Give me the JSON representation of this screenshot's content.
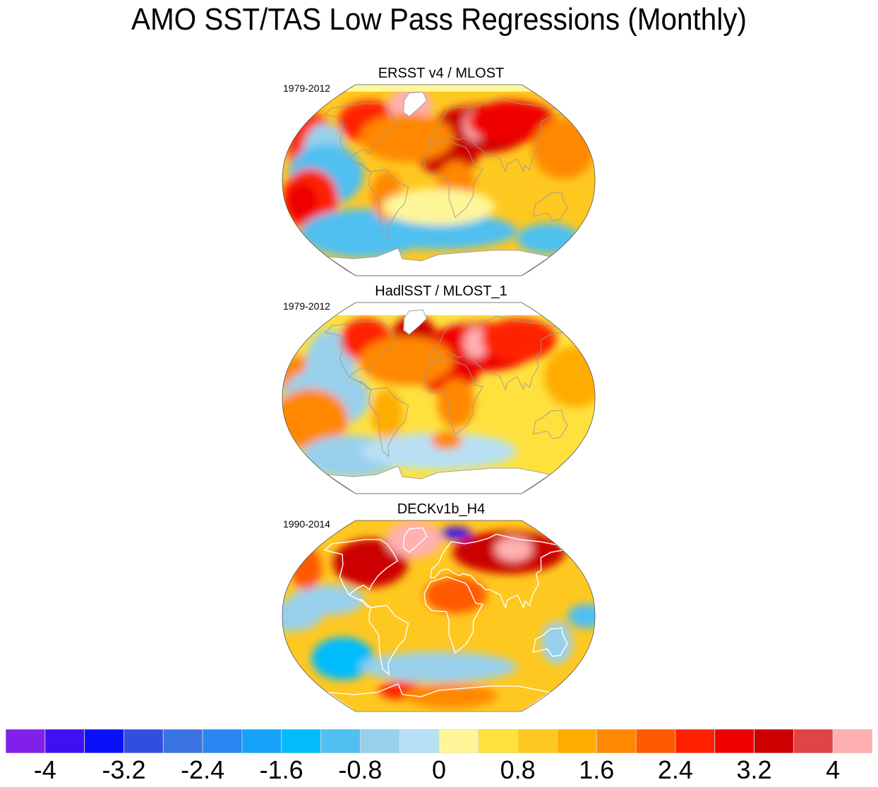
{
  "title": "AMO SST/TAS Low Pass Regressions (Monthly)",
  "panels": [
    {
      "title": "ERSST v4 / MLOST",
      "years": "1979-2012",
      "blobs": [
        {
          "lon": -150,
          "lat": 28,
          "rx": 0.08,
          "ry": 0.12,
          "level": 17
        },
        {
          "lon": -135,
          "lat": 25,
          "rx": 0.07,
          "ry": 0.1,
          "level": 9
        },
        {
          "lon": -130,
          "lat": 5,
          "rx": 0.12,
          "ry": 0.1,
          "level": 8
        },
        {
          "lon": -150,
          "lat": -18,
          "rx": 0.09,
          "ry": 0.1,
          "level": 17
        },
        {
          "lon": -160,
          "lat": -20,
          "rx": 0.05,
          "ry": 0.06,
          "level": 18
        },
        {
          "lon": -100,
          "lat": -50,
          "rx": 0.2,
          "ry": 0.08,
          "level": 8
        },
        {
          "lon": 0,
          "lat": -48,
          "rx": 0.25,
          "ry": 0.06,
          "level": 8
        },
        {
          "lon": 150,
          "lat": -55,
          "rx": 0.1,
          "ry": 0.05,
          "level": 8
        },
        {
          "lon": -95,
          "lat": 55,
          "rx": 0.1,
          "ry": 0.07,
          "level": 17
        },
        {
          "lon": -45,
          "lat": 70,
          "rx": 0.07,
          "ry": 0.06,
          "level": 21
        },
        {
          "lon": 10,
          "lat": 25,
          "rx": 0.1,
          "ry": 0.07,
          "level": 19
        },
        {
          "lon": 55,
          "lat": 48,
          "rx": 0.16,
          "ry": 0.08,
          "level": 19
        },
        {
          "lon": 50,
          "lat": 52,
          "rx": 0.04,
          "ry": 0.05,
          "level": 21
        },
        {
          "lon": 100,
          "lat": 55,
          "rx": 0.14,
          "ry": 0.07,
          "level": 18
        },
        {
          "lon": -40,
          "lat": 40,
          "rx": 0.15,
          "ry": 0.08,
          "level": 15
        },
        {
          "lon": -60,
          "lat": -15,
          "rx": 0.05,
          "ry": 0.08,
          "level": 15
        },
        {
          "lon": 20,
          "lat": -5,
          "rx": 0.06,
          "ry": 0.08,
          "level": 15
        },
        {
          "lon": 150,
          "lat": 30,
          "rx": 0.1,
          "ry": 0.1,
          "level": 15
        },
        {
          "lon": 0,
          "lat": -25,
          "rx": 0.18,
          "ry": 0.06,
          "level": 11
        }
      ],
      "base_level": 13
    },
    {
      "title": "HadlSST / MLOST_1",
      "years": "1979-2012",
      "blobs": [
        {
          "lon": -160,
          "lat": 20,
          "rx": 0.08,
          "ry": 0.07,
          "level": 15
        },
        {
          "lon": -130,
          "lat": 30,
          "rx": 0.08,
          "ry": 0.12,
          "level": 9
        },
        {
          "lon": -130,
          "lat": 0,
          "rx": 0.14,
          "ry": 0.1,
          "level": 9
        },
        {
          "lon": -150,
          "lat": -20,
          "rx": 0.12,
          "ry": 0.1,
          "level": 15
        },
        {
          "lon": -120,
          "lat": -55,
          "rx": 0.16,
          "ry": 0.07,
          "level": 9
        },
        {
          "lon": 0,
          "lat": -50,
          "rx": 0.25,
          "ry": 0.06,
          "level": 10
        },
        {
          "lon": -100,
          "lat": 55,
          "rx": 0.08,
          "ry": 0.07,
          "level": 17
        },
        {
          "lon": -35,
          "lat": 60,
          "rx": 0.07,
          "ry": 0.06,
          "level": 19
        },
        {
          "lon": 10,
          "lat": 25,
          "rx": 0.1,
          "ry": 0.07,
          "level": 18
        },
        {
          "lon": 55,
          "lat": 48,
          "rx": 0.18,
          "ry": 0.08,
          "level": 18
        },
        {
          "lon": 50,
          "lat": 52,
          "rx": 0.04,
          "ry": 0.05,
          "level": 21
        },
        {
          "lon": 110,
          "lat": 55,
          "rx": 0.12,
          "ry": 0.07,
          "level": 17
        },
        {
          "lon": -40,
          "lat": 35,
          "rx": 0.15,
          "ry": 0.08,
          "level": 15
        },
        {
          "lon": -60,
          "lat": -15,
          "rx": 0.05,
          "ry": 0.08,
          "level": 14
        },
        {
          "lon": 20,
          "lat": -5,
          "rx": 0.06,
          "ry": 0.08,
          "level": 15
        },
        {
          "lon": 160,
          "lat": 20,
          "rx": 0.1,
          "ry": 0.1,
          "level": 14
        },
        {
          "lon": 10,
          "lat": -40,
          "rx": 0.05,
          "ry": 0.03,
          "level": 15
        }
      ],
      "base_level": 12
    },
    {
      "title": "DECKv1b_H4",
      "years": "1990-2014",
      "blobs": [
        {
          "lon": -170,
          "lat": 0,
          "rx": 0.1,
          "ry": 0.05,
          "level": 9
        },
        {
          "lon": -130,
          "lat": 15,
          "rx": 0.12,
          "ry": 0.05,
          "level": 9
        },
        {
          "lon": -120,
          "lat": -40,
          "rx": 0.1,
          "ry": 0.07,
          "level": 7
        },
        {
          "lon": 0,
          "lat": -48,
          "rx": 0.25,
          "ry": 0.05,
          "level": 9
        },
        {
          "lon": 140,
          "lat": -25,
          "rx": 0.05,
          "ry": 0.07,
          "level": 9
        },
        {
          "lon": 170,
          "lat": 0,
          "rx": 0.06,
          "ry": 0.04,
          "level": 8
        },
        {
          "lon": -90,
          "lat": 50,
          "rx": 0.12,
          "ry": 0.08,
          "level": 19
        },
        {
          "lon": -40,
          "lat": 72,
          "rx": 0.09,
          "ry": 0.06,
          "level": 21
        },
        {
          "lon": 30,
          "lat": 78,
          "rx": 0.05,
          "ry": 0.02,
          "level": 1
        },
        {
          "lon": 100,
          "lat": 60,
          "rx": 0.18,
          "ry": 0.07,
          "level": 19
        },
        {
          "lon": 110,
          "lat": 63,
          "rx": 0.06,
          "ry": 0.04,
          "level": 21
        },
        {
          "lon": 20,
          "lat": 20,
          "rx": 0.1,
          "ry": 0.06,
          "level": 16
        },
        {
          "lon": -170,
          "lat": 45,
          "rx": 0.05,
          "ry": 0.07,
          "level": 16
        },
        {
          "lon": -60,
          "lat": -70,
          "rx": 0.07,
          "ry": 0.03,
          "level": 17
        },
        {
          "lon": 20,
          "lat": -75,
          "rx": 0.15,
          "ry": 0.04,
          "level": 15
        }
      ],
      "base_level": 13
    }
  ],
  "colorbar": {
    "colors": [
      "#8020e8",
      "#3f10f0",
      "#0a10f8",
      "#304fe0",
      "#3a74e2",
      "#2a86f2",
      "#16a2fa",
      "#02bcfb",
      "#50c0f0",
      "#98d0ec",
      "#b8e0f4",
      "#fff699",
      "#ffe13e",
      "#ffc820",
      "#ffac00",
      "#ff8800",
      "#ff5a00",
      "#ff2000",
      "#ee0000",
      "#cc0000",
      "#e04444",
      "#ffb0b0"
    ],
    "boundaries": [
      -4.4,
      -4.0,
      -3.6,
      -3.2,
      -2.8,
      -2.4,
      -2.0,
      -1.6,
      -1.2,
      -0.8,
      -0.4,
      0.0,
      0.4,
      0.8,
      1.2,
      1.6,
      2.0,
      2.4,
      2.8,
      3.2,
      3.6,
      4.0,
      4.4
    ],
    "tick_labels": [
      "-4",
      "-3.2",
      "-2.4",
      "-1.6",
      "-0.8",
      "0",
      "0.8",
      "1.6",
      "2.4",
      "3.2",
      "4"
    ],
    "tick_values": [
      -4.0,
      -3.2,
      -2.4,
      -1.6,
      -0.8,
      0.0,
      0.8,
      1.6,
      2.4,
      3.2,
      4.0
    ]
  },
  "chart_data": {
    "type": "heatmap",
    "title": "AMO SST/TAS Low Pass Regressions (Monthly)",
    "subplots": [
      {
        "title": "ERSST v4 / MLOST",
        "period": "1979-2012"
      },
      {
        "title": "HadlSST / MLOST_1",
        "period": "1979-2012"
      },
      {
        "title": "DECKv1b_H4",
        "period": "1990-2014"
      }
    ],
    "projection": "Robinson (global)",
    "colorbar_range": [
      -4.4,
      4.4
    ],
    "colorbar_step": 0.4,
    "colorbar_ticks": [
      -4,
      -3.2,
      -2.4,
      -1.6,
      -0.8,
      0,
      0.8,
      1.6,
      2.4,
      3.2,
      4
    ],
    "legend_placement": "bottom"
  }
}
